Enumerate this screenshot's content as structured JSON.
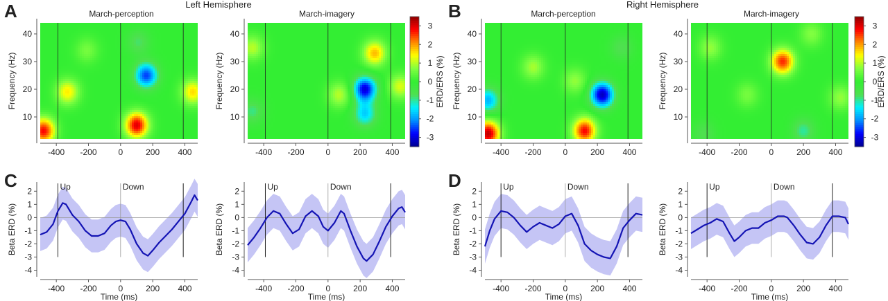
{
  "figure": {
    "panel_letters": [
      "A",
      "B",
      "C",
      "D"
    ],
    "hemispheres": [
      "Left Hemisphere",
      "Right Hemisphere"
    ],
    "conditions": [
      "March-perception",
      "March-imagery",
      "March-perception",
      "March-imagery"
    ],
    "colorbar": {
      "label": "ERD/ERS (%)",
      "min": -3.5,
      "max": 3.5,
      "ticks": [
        -3,
        -2,
        -1,
        0,
        1,
        2,
        3
      ],
      "colormap": [
        "#00008f",
        "#0000ff",
        "#0090ff",
        "#00f0ff",
        "#4fe050",
        "#33ee33",
        "#80ff40",
        "#ffff00",
        "#ff8a00",
        "#ff0000",
        "#8f0000"
      ]
    },
    "colors": {
      "line": "#1414b4",
      "band": "#c5c5f5",
      "ref_line": "#999999",
      "marker_line": "#222222"
    }
  },
  "chart_data": [
    {
      "type": "heatmap",
      "hemisphere": "Left Hemisphere",
      "title": "March-perception",
      "xlabel": "",
      "ylabel": "Frequency (Hz)",
      "xlim": [
        -500,
        480
      ],
      "ylim": [
        2,
        44
      ],
      "xticks": [
        -400,
        -200,
        0,
        200,
        400
      ],
      "yticks": [
        10,
        20,
        30,
        40
      ],
      "markers_x": [
        -390,
        0,
        390
      ],
      "background_value": 0,
      "blobs": [
        {
          "x": -330,
          "y": 19,
          "value": 1.5
        },
        {
          "x": 100,
          "y": 7,
          "value": 3.0
        },
        {
          "x": -480,
          "y": 5,
          "value": 2.8
        },
        {
          "x": 160,
          "y": 25,
          "value": -2.5
        },
        {
          "x": 450,
          "y": 19,
          "value": 1.6
        },
        {
          "x": 110,
          "y": 37,
          "value": -0.8
        },
        {
          "x": -210,
          "y": 34,
          "value": 0.6
        }
      ]
    },
    {
      "type": "heatmap",
      "hemisphere": "Left Hemisphere",
      "title": "March-imagery",
      "xlabel": "",
      "ylabel": "Frequency (Hz)",
      "xlim": [
        -500,
        480
      ],
      "ylim": [
        2,
        44
      ],
      "xticks": [
        -400,
        -200,
        0,
        200,
        400
      ],
      "yticks": [
        10,
        20,
        30,
        40
      ],
      "markers_x": [
        -390,
        0,
        390
      ],
      "background_value": 0,
      "blobs": [
        {
          "x": 230,
          "y": 20,
          "value": -3.0
        },
        {
          "x": 230,
          "y": 11,
          "value": -1.6
        },
        {
          "x": 290,
          "y": 33,
          "value": 1.8
        },
        {
          "x": 70,
          "y": 18,
          "value": 1.0
        },
        {
          "x": -470,
          "y": 35,
          "value": 1.0
        },
        {
          "x": 450,
          "y": 21,
          "value": 1.2
        },
        {
          "x": -470,
          "y": 12,
          "value": -0.9
        }
      ]
    },
    {
      "type": "heatmap",
      "hemisphere": "Right Hemisphere",
      "title": "March-perception",
      "xlabel": "",
      "ylabel": "Frequency (Hz)",
      "xlim": [
        -500,
        480
      ],
      "ylim": [
        2,
        44
      ],
      "xticks": [
        -400,
        -200,
        0,
        200,
        400
      ],
      "yticks": [
        10,
        20,
        30,
        40
      ],
      "markers_x": [
        -400,
        0,
        390
      ],
      "background_value": 0,
      "blobs": [
        {
          "x": 230,
          "y": 18,
          "value": -3.2
        },
        {
          "x": 120,
          "y": 5,
          "value": 2.8
        },
        {
          "x": -480,
          "y": 4,
          "value": 3.2
        },
        {
          "x": -480,
          "y": 16,
          "value": -1.8
        },
        {
          "x": -200,
          "y": 28,
          "value": 0.9
        },
        {
          "x": 60,
          "y": 23,
          "value": 0.8
        },
        {
          "x": 350,
          "y": 35,
          "value": -0.7
        }
      ]
    },
    {
      "type": "heatmap",
      "hemisphere": "Right Hemisphere",
      "title": "March-imagery",
      "xlabel": "",
      "ylabel": "Frequency (Hz)",
      "xlim": [
        -500,
        480
      ],
      "ylim": [
        2,
        44
      ],
      "xticks": [
        -400,
        -200,
        0,
        200,
        400
      ],
      "yticks": [
        10,
        20,
        30,
        40
      ],
      "markers_x": [
        -400,
        0,
        380
      ],
      "background_value": 0,
      "blobs": [
        {
          "x": 70,
          "y": 30,
          "value": 2.6
        },
        {
          "x": -380,
          "y": 35,
          "value": 0.8
        },
        {
          "x": 250,
          "y": 40,
          "value": 0.7
        },
        {
          "x": 430,
          "y": 17,
          "value": 0.8
        },
        {
          "x": 200,
          "y": 5,
          "value": -1.0
        },
        {
          "x": -420,
          "y": 4,
          "value": -0.7
        },
        {
          "x": -150,
          "y": 18,
          "value": 0.6
        }
      ]
    },
    {
      "type": "line",
      "hemisphere": "Left Hemisphere",
      "xlabel": "Time (ms)",
      "ylabel": "Beta ERD (%)",
      "xlim": [
        -500,
        480
      ],
      "ylim": [
        -4.5,
        2.7
      ],
      "xticks": [
        -400,
        -200,
        0,
        200,
        400
      ],
      "yticks": [
        -4,
        -3,
        -2,
        -1,
        0,
        1,
        2
      ],
      "markers_x": [
        -390,
        0,
        390
      ],
      "marker_labels": [
        "Up",
        "Down"
      ],
      "x": [
        -500,
        -460,
        -420,
        -390,
        -360,
        -340,
        -300,
        -260,
        -220,
        -180,
        -140,
        -100,
        -60,
        -30,
        0,
        30,
        60,
        100,
        140,
        170,
        200,
        240,
        280,
        320,
        360,
        400,
        440,
        460,
        480
      ],
      "y": [
        -1.3,
        -1.1,
        -0.5,
        0.5,
        1.1,
        1.0,
        0.2,
        -0.3,
        -1.0,
        -1.4,
        -1.4,
        -1.2,
        -0.6,
        -0.3,
        -0.2,
        -0.3,
        -0.9,
        -2.0,
        -2.7,
        -2.9,
        -2.5,
        -1.9,
        -1.4,
        -0.9,
        -0.3,
        0.3,
        1.2,
        1.7,
        1.3
      ],
      "band": 1.25
    },
    {
      "type": "line",
      "hemisphere": "Left Hemisphere",
      "xlabel": "Time (ms)",
      "ylabel": "Beta ERD (%)",
      "xlim": [
        -500,
        480
      ],
      "ylim": [
        -4.5,
        2.7
      ],
      "xticks": [
        -400,
        -200,
        0,
        200,
        400
      ],
      "yticks": [
        -4,
        -3,
        -2,
        -1,
        0,
        1,
        2
      ],
      "markers_x": [
        -390,
        0,
        390
      ],
      "marker_labels": [
        "Up",
        "Down"
      ],
      "x": [
        -500,
        -460,
        -420,
        -380,
        -340,
        -300,
        -260,
        -220,
        -180,
        -140,
        -100,
        -60,
        -30,
        0,
        40,
        80,
        100,
        140,
        180,
        220,
        240,
        280,
        320,
        360,
        400,
        440,
        460,
        480
      ],
      "y": [
        -2.1,
        -1.5,
        -0.8,
        0.0,
        0.5,
        0.3,
        -0.5,
        -1.2,
        -0.9,
        0.1,
        0.5,
        0.1,
        -0.7,
        -1.0,
        -0.4,
        0.5,
        0.3,
        -1.0,
        -2.2,
        -3.1,
        -3.3,
        -2.8,
        -1.8,
        -0.7,
        0.1,
        0.7,
        0.8,
        0.4
      ],
      "band": 1.3
    },
    {
      "type": "line",
      "hemisphere": "Right Hemisphere",
      "xlabel": "Time (ms)",
      "ylabel": "Beta ERD (%)",
      "xlim": [
        -500,
        480
      ],
      "ylim": [
        -4.5,
        2.7
      ],
      "xticks": [
        -400,
        -200,
        0,
        200,
        400
      ],
      "yticks": [
        -4,
        -3,
        -2,
        -1,
        0,
        1,
        2
      ],
      "markers_x": [
        -400,
        0,
        390
      ],
      "marker_labels": [
        "Up",
        "Down"
      ],
      "x": [
        -500,
        -470,
        -440,
        -400,
        -360,
        -320,
        -280,
        -240,
        -200,
        -160,
        -120,
        -80,
        -40,
        0,
        40,
        80,
        120,
        160,
        200,
        240,
        280,
        320,
        360,
        400,
        440,
        480
      ],
      "y": [
        -2.2,
        -1.0,
        -0.1,
        0.5,
        0.4,
        0.0,
        -0.6,
        -1.1,
        -0.7,
        -0.4,
        -0.6,
        -0.8,
        -0.5,
        0.1,
        0.3,
        -0.6,
        -2.0,
        -2.5,
        -2.8,
        -3.0,
        -3.1,
        -2.2,
        -0.8,
        -0.2,
        0.3,
        0.2
      ],
      "band": 1.3
    },
    {
      "type": "line",
      "hemisphere": "Right Hemisphere",
      "xlabel": "Time (ms)",
      "ylabel": "Beta ERD (%)",
      "xlim": [
        -500,
        480
      ],
      "ylim": [
        -4.5,
        2.7
      ],
      "xticks": [
        -400,
        -200,
        0,
        200,
        400
      ],
      "yticks": [
        -4,
        -3,
        -2,
        -1,
        0,
        1,
        2
      ],
      "markers_x": [
        -400,
        0,
        380
      ],
      "marker_labels": [
        "Up",
        "Down"
      ],
      "x": [
        -500,
        -460,
        -420,
        -380,
        -340,
        -300,
        -260,
        -230,
        -200,
        -160,
        -120,
        -80,
        -40,
        0,
        40,
        80,
        100,
        140,
        180,
        220,
        260,
        300,
        340,
        380,
        420,
        460,
        480
      ],
      "y": [
        -1.2,
        -0.9,
        -0.6,
        -0.4,
        -0.1,
        -0.3,
        -1.2,
        -1.8,
        -1.5,
        -1.0,
        -0.8,
        -0.8,
        -0.4,
        -0.2,
        0.1,
        0.1,
        0.0,
        -0.6,
        -1.3,
        -1.9,
        -2.0,
        -1.5,
        -0.6,
        0.1,
        0.1,
        0.0,
        -0.5
      ],
      "band": 1.2
    }
  ]
}
